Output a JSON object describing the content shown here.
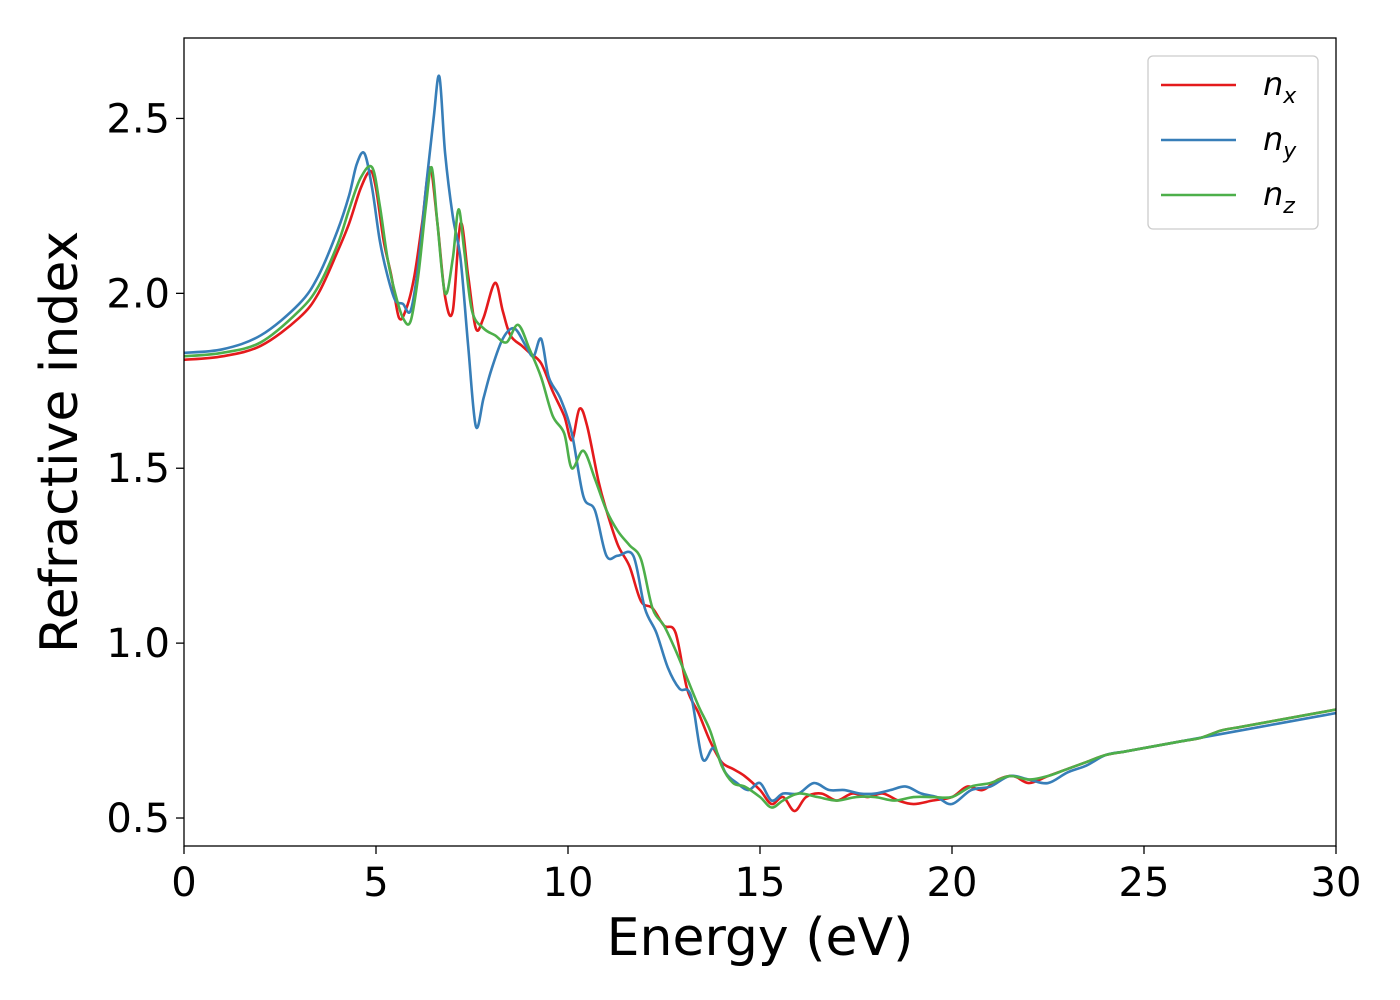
{
  "chart_data": {
    "type": "line",
    "title": "",
    "xlabel": "Energy (eV)",
    "ylabel": "Refractive index",
    "xlim": [
      0,
      30
    ],
    "ylim": [
      0.42,
      2.73
    ],
    "xticks": [
      0,
      5,
      10,
      15,
      20,
      25,
      30
    ],
    "xtick_labels": [
      "0",
      "5",
      "10",
      "15",
      "20",
      "25",
      "30"
    ],
    "yticks": [
      0.5,
      1.0,
      1.5,
      2.0,
      2.5
    ],
    "ytick_labels": [
      "0.5",
      "1.0",
      "1.5",
      "2.0",
      "2.5"
    ],
    "grid": false,
    "legend_position": "top-right",
    "series": [
      {
        "name": "n",
        "subscript": "x",
        "color": "#e41a1c",
        "x": [
          0,
          1,
          2,
          3,
          3.5,
          4,
          4.3,
          4.6,
          4.85,
          5.0,
          5.2,
          5.4,
          5.6,
          5.8,
          6.0,
          6.2,
          6.4,
          6.6,
          6.8,
          7.0,
          7.2,
          7.4,
          7.6,
          7.8,
          8.1,
          8.3,
          8.5,
          8.8,
          9.0,
          9.3,
          9.6,
          9.9,
          10.1,
          10.3,
          10.5,
          10.8,
          11.0,
          11.3,
          11.6,
          11.9,
          12.2,
          12.5,
          12.8,
          13.1,
          13.4,
          13.7,
          14.0,
          14.3,
          14.6,
          15.0,
          15.3,
          15.6,
          15.9,
          16.2,
          16.6,
          17.0,
          17.4,
          17.8,
          18.2,
          18.6,
          19.0,
          19.5,
          20.0,
          20.4,
          20.8,
          21.2,
          21.6,
          22.0,
          22.5,
          23.0,
          23.5,
          24.0,
          24.5,
          25.0,
          25.5,
          26.0,
          26.5,
          27.0,
          27.5,
          28.0,
          28.5,
          29.0,
          29.5,
          30.0
        ],
        "y": [
          1.81,
          1.82,
          1.85,
          1.93,
          2.0,
          2.12,
          2.2,
          2.3,
          2.35,
          2.3,
          2.15,
          2.05,
          1.93,
          1.96,
          2.05,
          2.2,
          2.36,
          2.2,
          1.99,
          1.95,
          2.2,
          2.05,
          1.9,
          1.93,
          2.03,
          1.95,
          1.88,
          1.85,
          1.83,
          1.8,
          1.72,
          1.65,
          1.58,
          1.67,
          1.62,
          1.46,
          1.38,
          1.28,
          1.22,
          1.12,
          1.1,
          1.05,
          1.03,
          0.87,
          0.8,
          0.72,
          0.66,
          0.64,
          0.62,
          0.58,
          0.54,
          0.56,
          0.52,
          0.56,
          0.57,
          0.55,
          0.57,
          0.56,
          0.57,
          0.55,
          0.54,
          0.55,
          0.56,
          0.59,
          0.58,
          0.61,
          0.62,
          0.6,
          0.62,
          0.64,
          0.66,
          0.68,
          0.69,
          0.7,
          0.71,
          0.72,
          0.73,
          0.75,
          0.76,
          0.77,
          0.78,
          0.79,
          0.8,
          0.81
        ]
      },
      {
        "name": "n",
        "subscript": "y",
        "color": "#377eb8",
        "x": [
          0,
          1,
          2,
          3,
          3.5,
          4,
          4.3,
          4.5,
          4.7,
          4.9,
          5.1,
          5.3,
          5.5,
          5.7,
          5.9,
          6.1,
          6.3,
          6.5,
          6.65,
          6.8,
          7.0,
          7.2,
          7.4,
          7.6,
          7.8,
          8.0,
          8.3,
          8.6,
          8.9,
          9.1,
          9.3,
          9.5,
          9.8,
          10.1,
          10.4,
          10.7,
          11.0,
          11.3,
          11.7,
          12.0,
          12.3,
          12.6,
          12.9,
          13.2,
          13.5,
          13.8,
          14.1,
          14.4,
          14.7,
          15.0,
          15.3,
          15.6,
          16.0,
          16.4,
          16.8,
          17.2,
          17.6,
          18.0,
          18.4,
          18.8,
          19.2,
          19.6,
          20.0,
          20.5,
          21.0,
          21.5,
          22.0,
          22.5,
          23.0,
          23.5,
          24.0,
          24.5,
          25.0,
          25.5,
          26.0,
          26.5,
          27.0,
          27.5,
          28.0,
          28.5,
          29.0,
          29.5,
          30.0
        ],
        "y": [
          1.83,
          1.84,
          1.88,
          1.97,
          2.05,
          2.18,
          2.28,
          2.37,
          2.4,
          2.3,
          2.15,
          2.05,
          1.98,
          1.97,
          1.95,
          2.08,
          2.3,
          2.5,
          2.62,
          2.4,
          2.22,
          2.1,
          1.85,
          1.62,
          1.7,
          1.78,
          1.87,
          1.9,
          1.85,
          1.82,
          1.87,
          1.76,
          1.7,
          1.6,
          1.42,
          1.38,
          1.25,
          1.25,
          1.25,
          1.1,
          1.03,
          0.93,
          0.87,
          0.85,
          0.67,
          0.7,
          0.63,
          0.6,
          0.58,
          0.6,
          0.55,
          0.57,
          0.57,
          0.6,
          0.58,
          0.58,
          0.57,
          0.57,
          0.58,
          0.59,
          0.57,
          0.56,
          0.54,
          0.58,
          0.59,
          0.62,
          0.61,
          0.6,
          0.63,
          0.65,
          0.68,
          0.69,
          0.7,
          0.71,
          0.72,
          0.73,
          0.74,
          0.75,
          0.76,
          0.77,
          0.78,
          0.79,
          0.8
        ]
      },
      {
        "name": "n",
        "subscript": "z",
        "color": "#4daf4a",
        "x": [
          0,
          1,
          2,
          3,
          3.5,
          4,
          4.3,
          4.6,
          4.9,
          5.1,
          5.3,
          5.5,
          5.7,
          5.9,
          6.1,
          6.3,
          6.45,
          6.6,
          6.8,
          7.0,
          7.15,
          7.3,
          7.5,
          7.8,
          8.1,
          8.4,
          8.7,
          9.0,
          9.3,
          9.6,
          9.9,
          10.1,
          10.4,
          10.7,
          11.0,
          11.3,
          11.6,
          11.9,
          12.2,
          12.5,
          12.8,
          13.1,
          13.4,
          13.7,
          14.0,
          14.3,
          14.6,
          15.0,
          15.3,
          15.6,
          16.0,
          16.5,
          17.0,
          17.5,
          18.0,
          18.5,
          19.0,
          19.5,
          20.0,
          20.5,
          21.0,
          21.5,
          22.0,
          22.5,
          23.0,
          23.5,
          24.0,
          24.5,
          25.0,
          25.5,
          26.0,
          26.5,
          27.0,
          27.5,
          28.0,
          28.5,
          29.0,
          29.5,
          30.0
        ],
        "y": [
          1.82,
          1.83,
          1.86,
          1.95,
          2.02,
          2.14,
          2.24,
          2.33,
          2.36,
          2.25,
          2.1,
          2.0,
          1.93,
          1.92,
          2.05,
          2.25,
          2.36,
          2.2,
          2.0,
          2.1,
          2.24,
          2.12,
          1.95,
          1.9,
          1.88,
          1.86,
          1.91,
          1.84,
          1.76,
          1.65,
          1.6,
          1.5,
          1.55,
          1.47,
          1.38,
          1.32,
          1.28,
          1.24,
          1.1,
          1.05,
          0.98,
          0.9,
          0.82,
          0.75,
          0.65,
          0.6,
          0.59,
          0.56,
          0.53,
          0.55,
          0.57,
          0.56,
          0.55,
          0.56,
          0.56,
          0.55,
          0.56,
          0.56,
          0.56,
          0.59,
          0.6,
          0.62,
          0.61,
          0.62,
          0.64,
          0.66,
          0.68,
          0.69,
          0.7,
          0.71,
          0.72,
          0.73,
          0.75,
          0.76,
          0.77,
          0.78,
          0.79,
          0.8,
          0.81
        ]
      }
    ]
  }
}
